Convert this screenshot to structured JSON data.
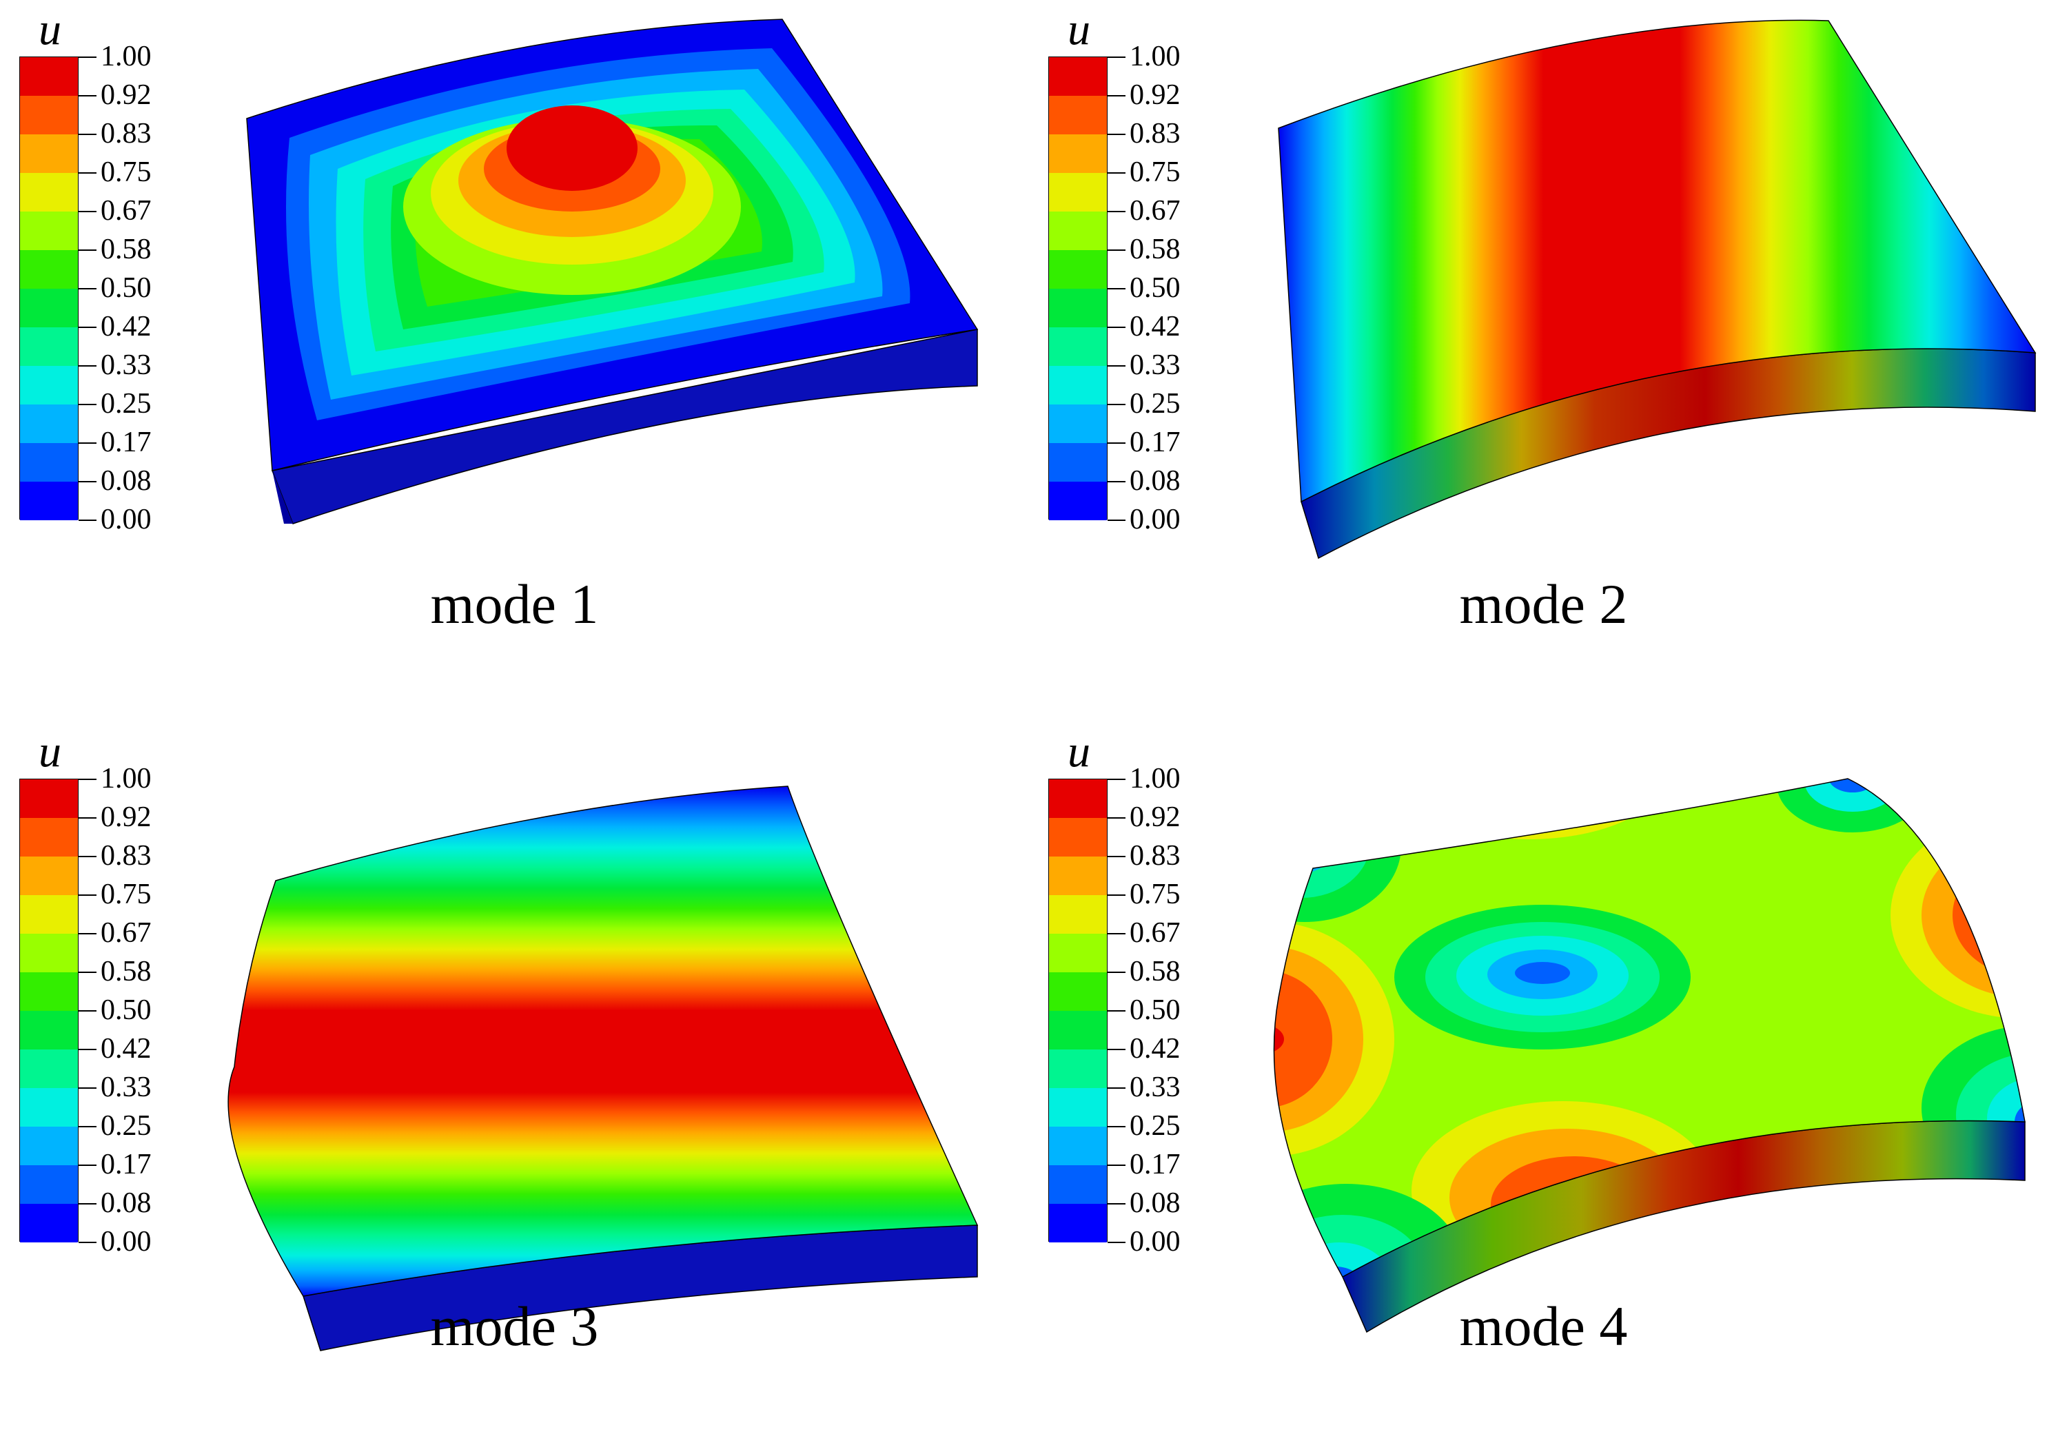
{
  "colorbar": {
    "variable": "u",
    "labels": [
      "1.00",
      "0.92",
      "0.83",
      "0.75",
      "0.67",
      "0.58",
      "0.50",
      "0.42",
      "0.33",
      "0.25",
      "0.17",
      "0.08",
      "0.00"
    ],
    "colors": [
      "#e60000",
      "#ff5500",
      "#ffaa00",
      "#e8ef00",
      "#99ff00",
      "#33ee00",
      "#00e83a",
      "#00f590",
      "#00f0e0",
      "#00b4ff",
      "#0060ff",
      "#0000ff"
    ]
  },
  "panels": [
    {
      "caption": "mode 1"
    },
    {
      "caption": "mode 2"
    },
    {
      "caption": "mode 3"
    },
    {
      "caption": "mode 4"
    }
  ]
}
